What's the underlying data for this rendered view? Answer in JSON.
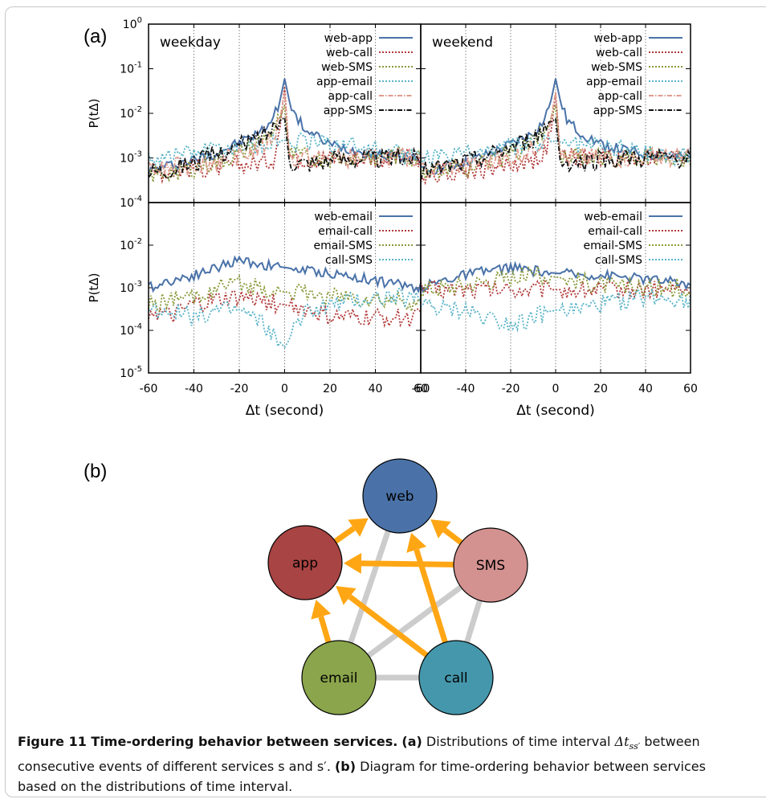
{
  "labels": {
    "panel_a": "(a)",
    "panel_b": "(b)"
  },
  "caption": {
    "title": "Figure 11  Time-ordering behavior between services.",
    "part_a_label": "(a)",
    "part_a_text": " Distributions of time interval ",
    "symbol": "Δt",
    "symbol_sub": "ss′",
    "part_a_text2": " between consecutive events of different services s and s′. ",
    "part_b_label": "(b)",
    "part_b_text": " Diagram for time-ordering behavior between services based on the distributions of time interval."
  },
  "chart_data": [
    {
      "type": "line",
      "title": "weekday",
      "xlabel": "",
      "ylabel": "P(tΔ)",
      "xlim": [
        -60,
        60
      ],
      "ylim": [
        0.0001,
        1
      ],
      "yscale": "log",
      "grid": "x-only",
      "legend_loc": "top-right",
      "series": [
        {
          "name": "web-app",
          "color": "#4a72a8",
          "style": "solid",
          "x": [
            -60,
            -50,
            -40,
            -30,
            -20,
            -10,
            -5,
            -2,
            0,
            2,
            5,
            10,
            20,
            30,
            40,
            50,
            60
          ],
          "y": [
            0.0005,
            0.0007,
            0.0009,
            0.0013,
            0.0022,
            0.004,
            0.008,
            0.02,
            0.06,
            0.02,
            0.008,
            0.004,
            0.002,
            0.0015,
            0.0012,
            0.0011,
            0.001
          ]
        },
        {
          "name": "web-call",
          "color": "#b23a3a",
          "style": "dotted",
          "x": [
            -60,
            -50,
            -40,
            -30,
            -20,
            -10,
            -5,
            -2,
            0,
            2,
            5,
            10,
            20,
            30,
            40,
            50,
            60
          ],
          "y": [
            0.0005,
            0.0005,
            0.0006,
            0.0006,
            0.0007,
            0.0008,
            0.001,
            0.005,
            0.04,
            0.0012,
            0.001,
            0.001,
            0.001,
            0.001,
            0.001,
            0.001,
            0.001
          ]
        },
        {
          "name": "web-SMS",
          "color": "#8a9a3a",
          "style": "dotted",
          "x": [
            -60,
            -50,
            -40,
            -30,
            -20,
            -10,
            -5,
            -2,
            0,
            2,
            5,
            10,
            20,
            30,
            40,
            50,
            60
          ],
          "y": [
            0.0004,
            0.0005,
            0.0006,
            0.0008,
            0.0012,
            0.0025,
            0.004,
            0.008,
            0.015,
            0.0012,
            0.0011,
            0.001,
            0.001,
            0.001,
            0.0011,
            0.0011,
            0.001
          ]
        },
        {
          "name": "app-email",
          "color": "#5ab4c8",
          "style": "dotted",
          "x": [
            -60,
            -50,
            -40,
            -30,
            -20,
            -10,
            -5,
            -2,
            0,
            2,
            5,
            10,
            20,
            30,
            40,
            50,
            60
          ],
          "y": [
            0.001,
            0.0012,
            0.0014,
            0.0016,
            0.0018,
            0.002,
            0.0022,
            0.0024,
            0.0025,
            0.0024,
            0.0023,
            0.0022,
            0.0021,
            0.002,
            0.0015,
            0.0012,
            0.0011
          ]
        },
        {
          "name": "app-call",
          "color": "#e09c8e",
          "style": "dashdot",
          "x": [
            -60,
            -50,
            -40,
            -30,
            -20,
            -10,
            -5,
            -2,
            0,
            2,
            5,
            10,
            20,
            30,
            40,
            50,
            60
          ],
          "y": [
            0.0005,
            0.0006,
            0.0007,
            0.0008,
            0.0011,
            0.0018,
            0.003,
            0.008,
            0.03,
            0.001,
            0.001,
            0.001,
            0.001,
            0.001,
            0.001,
            0.001,
            0.001
          ]
        },
        {
          "name": "app-SMS",
          "color": "#111111",
          "style": "dashdot",
          "x": [
            -60,
            -50,
            -40,
            -30,
            -20,
            -10,
            -5,
            -2,
            0,
            2,
            5,
            10,
            20,
            30,
            40,
            50,
            60
          ],
          "y": [
            0.0005,
            0.0006,
            0.0008,
            0.0012,
            0.0018,
            0.003,
            0.005,
            0.007,
            0.008,
            0.0009,
            0.0008,
            0.0008,
            0.0009,
            0.001,
            0.001,
            0.001,
            0.001
          ]
        }
      ]
    },
    {
      "type": "line",
      "title": "weekend",
      "xlabel": "",
      "ylabel": "",
      "xlim": [
        -60,
        60
      ],
      "ylim": [
        0.0001,
        1
      ],
      "yscale": "log",
      "grid": "x-only",
      "legend_loc": "top-right",
      "series": [
        {
          "name": "web-app",
          "color": "#4a72a8",
          "style": "solid",
          "x": [
            -60,
            -50,
            -40,
            -30,
            -20,
            -10,
            -5,
            -2,
            0,
            2,
            5,
            10,
            20,
            30,
            40,
            50,
            60
          ],
          "y": [
            0.0005,
            0.0006,
            0.0008,
            0.0012,
            0.002,
            0.0035,
            0.007,
            0.02,
            0.06,
            0.02,
            0.007,
            0.004,
            0.002,
            0.0015,
            0.0012,
            0.0011,
            0.001
          ]
        },
        {
          "name": "web-call",
          "color": "#b23a3a",
          "style": "dotted",
          "x": [
            -60,
            -50,
            -40,
            -30,
            -20,
            -10,
            -5,
            -2,
            0,
            2,
            5,
            10,
            20,
            30,
            40,
            50,
            60
          ],
          "y": [
            0.0004,
            0.0005,
            0.0005,
            0.0006,
            0.0007,
            0.0009,
            0.0012,
            0.004,
            0.03,
            0.0012,
            0.001,
            0.001,
            0.001,
            0.001,
            0.001,
            0.001,
            0.001
          ]
        },
        {
          "name": "web-SMS",
          "color": "#8a9a3a",
          "style": "dotted",
          "x": [
            -60,
            -50,
            -40,
            -30,
            -20,
            -10,
            -5,
            -2,
            0,
            2,
            5,
            10,
            20,
            30,
            40,
            50,
            60
          ],
          "y": [
            0.0004,
            0.0005,
            0.0006,
            0.0008,
            0.0012,
            0.0025,
            0.004,
            0.008,
            0.015,
            0.0012,
            0.0011,
            0.001,
            0.001,
            0.001,
            0.0011,
            0.0011,
            0.001
          ]
        },
        {
          "name": "app-email",
          "color": "#5ab4c8",
          "style": "dotted",
          "x": [
            -60,
            -50,
            -40,
            -30,
            -20,
            -10,
            -5,
            -2,
            0,
            2,
            5,
            10,
            20,
            30,
            40,
            50,
            60
          ],
          "y": [
            0.0009,
            0.001,
            0.0012,
            0.0015,
            0.0018,
            0.002,
            0.0022,
            0.0023,
            0.0024,
            0.0023,
            0.0022,
            0.002,
            0.0019,
            0.0017,
            0.0014,
            0.0012,
            0.0011
          ]
        },
        {
          "name": "app-call",
          "color": "#e09c8e",
          "style": "dashdot",
          "x": [
            -60,
            -50,
            -40,
            -30,
            -20,
            -10,
            -5,
            -2,
            0,
            2,
            5,
            10,
            20,
            30,
            40,
            50,
            60
          ],
          "y": [
            0.0005,
            0.0006,
            0.0007,
            0.0008,
            0.001,
            0.0016,
            0.003,
            0.008,
            0.03,
            0.001,
            0.001,
            0.001,
            0.001,
            0.001,
            0.001,
            0.001,
            0.001
          ]
        },
        {
          "name": "app-SMS",
          "color": "#111111",
          "style": "dashdot",
          "x": [
            -60,
            -50,
            -40,
            -30,
            -20,
            -10,
            -5,
            -2,
            0,
            2,
            5,
            10,
            20,
            30,
            40,
            50,
            60
          ],
          "y": [
            0.0005,
            0.0006,
            0.0008,
            0.0011,
            0.0017,
            0.0028,
            0.0045,
            0.0065,
            0.0075,
            0.0009,
            0.0008,
            0.0008,
            0.0009,
            0.001,
            0.001,
            0.001,
            0.001
          ]
        }
      ]
    },
    {
      "type": "line",
      "title": "",
      "xlabel": "Δt (second)",
      "ylabel": "P(tΔ)",
      "xlim": [
        -60,
        60
      ],
      "ylim": [
        1e-05,
        0.1
      ],
      "yscale": "log",
      "grid": "x-only",
      "legend_loc": "top-right",
      "series": [
        {
          "name": "web-email",
          "color": "#4a72a8",
          "style": "solid",
          "x": [
            -60,
            -50,
            -40,
            -30,
            -20,
            -10,
            0,
            10,
            20,
            30,
            40,
            50,
            60
          ],
          "y": [
            0.001,
            0.0015,
            0.002,
            0.003,
            0.0045,
            0.0035,
            0.003,
            0.0025,
            0.0022,
            0.0018,
            0.0015,
            0.0012,
            0.001
          ]
        },
        {
          "name": "email-call",
          "color": "#b23a3a",
          "style": "dotted",
          "x": [
            -60,
            -50,
            -40,
            -30,
            -20,
            -10,
            0,
            10,
            20,
            30,
            40,
            50,
            60
          ],
          "y": [
            0.0003,
            0.0002,
            0.0004,
            0.0005,
            0.0006,
            0.0005,
            0.0004,
            0.0003,
            0.0002,
            0.0002,
            0.0002,
            0.0002,
            0.0002
          ]
        },
        {
          "name": "email-SMS",
          "color": "#8a9a3a",
          "style": "dotted",
          "x": [
            -60,
            -50,
            -40,
            -30,
            -20,
            -10,
            0,
            10,
            20,
            30,
            40,
            50,
            60
          ],
          "y": [
            0.0004,
            0.0005,
            0.0006,
            0.001,
            0.0012,
            0.001,
            0.0008,
            0.0007,
            0.0006,
            0.0006,
            0.0005,
            0.0005,
            0.0004
          ]
        },
        {
          "name": "call-SMS",
          "color": "#5ab4c8",
          "style": "dotted",
          "x": [
            -60,
            -50,
            -40,
            -30,
            -20,
            -10,
            0,
            10,
            20,
            30,
            40,
            50,
            60
          ],
          "y": [
            0.0003,
            0.0003,
            0.0002,
            0.0003,
            0.0003,
            0.00015,
            4e-05,
            0.0003,
            0.0004,
            0.0005,
            0.0006,
            0.0006,
            0.0005
          ]
        }
      ]
    },
    {
      "type": "line",
      "title": "",
      "xlabel": "Δt (second)",
      "ylabel": "",
      "xlim": [
        -60,
        60
      ],
      "ylim": [
        1e-05,
        0.1
      ],
      "yscale": "log",
      "grid": "x-only",
      "legend_loc": "top-right",
      "series": [
        {
          "name": "web-email",
          "color": "#4a72a8",
          "style": "solid",
          "x": [
            -60,
            -50,
            -40,
            -30,
            -20,
            -10,
            0,
            10,
            20,
            30,
            40,
            50,
            60
          ],
          "y": [
            0.001,
            0.0015,
            0.002,
            0.0025,
            0.003,
            0.0025,
            0.0022,
            0.002,
            0.002,
            0.0018,
            0.0016,
            0.0014,
            0.0012
          ]
        },
        {
          "name": "email-call",
          "color": "#b23a3a",
          "style": "dotted",
          "x": [
            -60,
            -50,
            -40,
            -30,
            -20,
            -10,
            0,
            10,
            20,
            30,
            40,
            50,
            60
          ],
          "y": [
            0.0009,
            0.0009,
            0.0009,
            0.0009,
            0.0009,
            0.0009,
            0.0009,
            0.0009,
            0.0009,
            0.0009,
            0.0009,
            0.0009,
            0.0009
          ]
        },
        {
          "name": "email-SMS",
          "color": "#8a9a3a",
          "style": "dotted",
          "x": [
            -60,
            -50,
            -40,
            -30,
            -20,
            -10,
            0,
            10,
            20,
            30,
            40,
            50,
            60
          ],
          "y": [
            0.001,
            0.001,
            0.0012,
            0.0015,
            0.0018,
            0.002,
            0.0018,
            0.0015,
            0.0012,
            0.001,
            0.001,
            0.001,
            0.001
          ]
        },
        {
          "name": "call-SMS",
          "color": "#5ab4c8",
          "style": "dotted",
          "x": [
            -60,
            -50,
            -40,
            -30,
            -20,
            -10,
            0,
            10,
            20,
            30,
            40,
            50,
            60
          ],
          "y": [
            0.0004,
            0.0003,
            0.0003,
            0.0002,
            0.00015,
            0.0002,
            0.0003,
            0.0003,
            0.0004,
            0.0005,
            0.0006,
            0.0006,
            0.0005
          ]
        }
      ]
    }
  ],
  "diagram": {
    "nodes": [
      {
        "id": "web",
        "label": "web",
        "fill": "#4a72a8"
      },
      {
        "id": "app",
        "label": "app",
        "fill": "#a84443"
      },
      {
        "id": "SMS",
        "label": "SMS",
        "fill": "#d39190"
      },
      {
        "id": "email",
        "label": "email",
        "fill": "#8aa54b"
      },
      {
        "id": "call",
        "label": "call",
        "fill": "#4597ac"
      }
    ],
    "edges": [
      {
        "from": "app",
        "to": "web",
        "arrow": true
      },
      {
        "from": "SMS",
        "to": "web",
        "arrow": true
      },
      {
        "from": "call",
        "to": "web",
        "arrow": true
      },
      {
        "from": "email",
        "to": "app",
        "arrow": true
      },
      {
        "from": "SMS",
        "to": "app",
        "arrow": true
      },
      {
        "from": "call",
        "to": "app",
        "arrow": true
      },
      {
        "from": "email",
        "to": "web",
        "arrow": false
      },
      {
        "from": "email",
        "to": "SMS",
        "arrow": false
      },
      {
        "from": "email",
        "to": "call",
        "arrow": false
      },
      {
        "from": "call",
        "to": "SMS",
        "arrow": false
      }
    ],
    "arrow_color": "#ffa615",
    "neutral_color": "#cccccc"
  }
}
